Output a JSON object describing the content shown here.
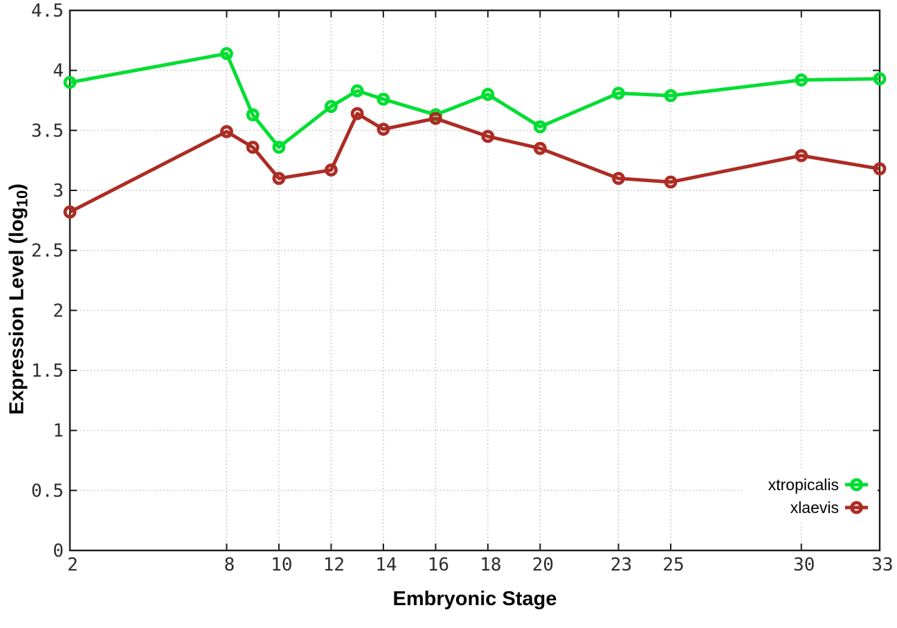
{
  "chart_data": {
    "type": "line",
    "title": "",
    "xlabel": "Embryonic Stage",
    "ylabel": "Expression Level (log10)",
    "ylabel_parts": {
      "prefix": "Expression Level (log",
      "sub": "10",
      "suffix": ")"
    },
    "x": [
      2,
      8,
      9,
      10,
      12,
      13,
      14,
      16,
      18,
      20,
      23,
      25,
      30,
      33
    ],
    "series": [
      {
        "name": "xtropicalis",
        "color": "#00de32",
        "values": [
          3.9,
          4.14,
          3.63,
          3.36,
          3.7,
          3.83,
          3.76,
          3.63,
          3.8,
          3.53,
          3.81,
          3.79,
          3.92,
          3.93
        ]
      },
      {
        "name": "xlaevis",
        "color": "#ac2c24",
        "values": [
          2.82,
          3.49,
          3.36,
          3.1,
          3.17,
          3.64,
          3.51,
          3.6,
          3.45,
          3.35,
          3.1,
          3.07,
          3.29,
          3.18
        ]
      }
    ],
    "xlim": [
      2,
      33
    ],
    "ylim": [
      0,
      4.5
    ],
    "xticks": [
      2,
      8,
      10,
      12,
      14,
      16,
      18,
      20,
      23,
      25,
      30,
      33
    ],
    "xtick_labels": [
      "2",
      "8",
      "10",
      "12",
      "14",
      "16",
      "18",
      "20",
      "23",
      "25",
      "30",
      "33"
    ],
    "yticks": [
      0,
      0.5,
      1,
      1.5,
      2,
      2.5,
      3,
      3.5,
      4,
      4.5
    ],
    "ytick_labels": [
      "0",
      "0.5",
      "1",
      "1.5",
      "2",
      "2.5",
      "3",
      "3.5",
      "4",
      "4.5"
    ],
    "grid": true,
    "legend_position": "inside-bottom-right",
    "legend_entries": [
      "xtropicalis",
      "xlaevis"
    ],
    "marker": "open-circle",
    "colors": {
      "axis": "#1c1c1c",
      "grid": "#b3b3b3",
      "tick_text": "#2d2d2d",
      "background": "#ffffff",
      "legend_background": "#ffffff"
    }
  }
}
